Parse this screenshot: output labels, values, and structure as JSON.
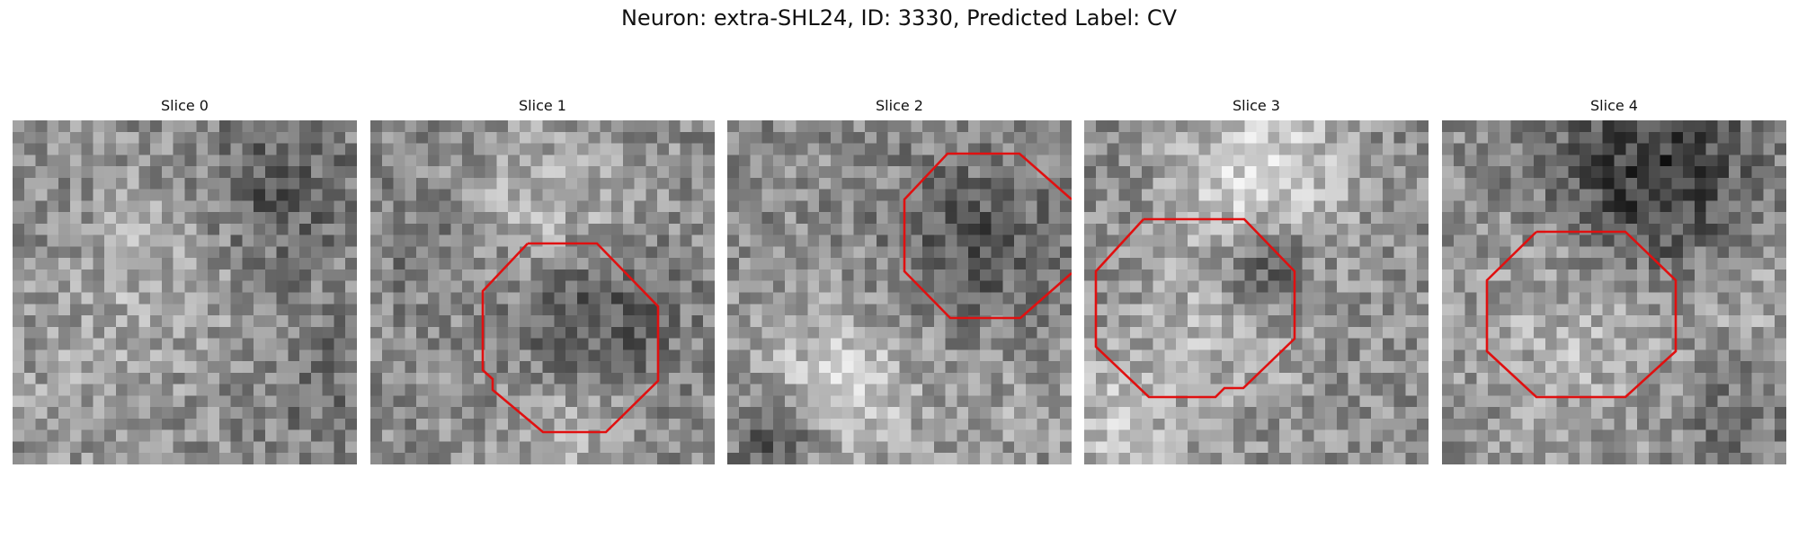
{
  "figure": {
    "title": "Neuron: extra-SHL24, ID: 3330, Predicted Label: CV",
    "contour_color": "#e01010"
  },
  "panels": [
    {
      "title": "Slice 0",
      "has_contour": false,
      "seed": 11
    },
    {
      "title": "Slice 1",
      "has_contour": true,
      "seed": 23
    },
    {
      "title": "Slice 2",
      "has_contour": true,
      "seed": 37
    },
    {
      "title": "Slice 3",
      "has_contour": true,
      "seed": 41
    },
    {
      "title": "Slice 4",
      "has_contour": true,
      "seed": 53
    }
  ]
}
